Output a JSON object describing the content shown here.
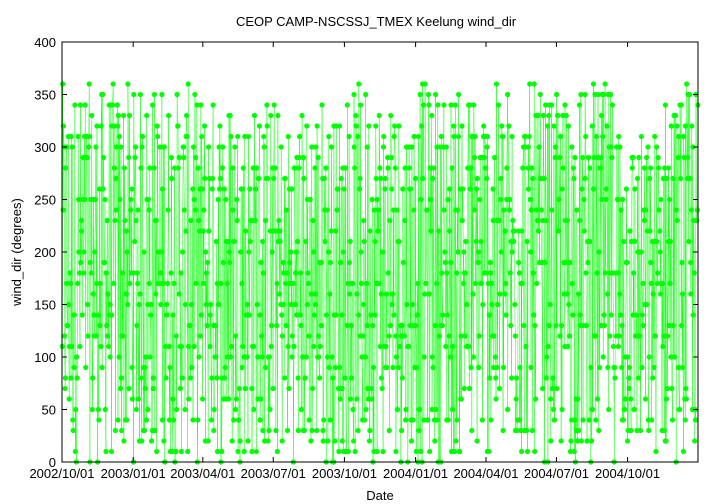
{
  "chart_data": {
    "type": "scatter",
    "title": "CEOP CAMP-NSCSSJ_TMEX Keelung  wind_dir",
    "xlabel": "Date",
    "ylabel": "wind_dir (degrees)",
    "xlim": [
      "2002-10-01",
      "2004-12-31"
    ],
    "ylim": [
      0,
      400
    ],
    "x_ticks": [
      "2002/10/01",
      "2003/01/01",
      "2003/04/01",
      "2003/07/01",
      "2003/10/01",
      "2004/01/01",
      "2004/04/01",
      "2004/07/01",
      "2004/10/01"
    ],
    "y_ticks": [
      0,
      50,
      100,
      150,
      200,
      250,
      300,
      350,
      400
    ],
    "grid": false,
    "series": [
      {
        "color": "#00ff00",
        "style": "line-with-points",
        "x": [
          "2002-10-01",
          "2002-10-15",
          "2002-11-01",
          "2002-11-15",
          "2002-12-01",
          "2002-12-15",
          "2003-01-01",
          "2003-01-15",
          "2003-02-01",
          "2003-02-15",
          "2003-03-01",
          "2003-03-15",
          "2003-04-01",
          "2003-04-15",
          "2003-05-01",
          "2003-05-15",
          "2003-06-01",
          "2003-06-15",
          "2003-07-01",
          "2003-07-15",
          "2003-08-01",
          "2003-08-15",
          "2003-09-01",
          "2003-09-15",
          "2003-10-01",
          "2003-10-15",
          "2003-11-01",
          "2003-11-15",
          "2003-12-01",
          "2003-12-15",
          "2004-01-01",
          "2004-01-15",
          "2004-02-01",
          "2004-02-15",
          "2004-03-01",
          "2004-03-15",
          "2004-04-01",
          "2004-04-15",
          "2004-05-01",
          "2004-05-15",
          "2004-06-01",
          "2004-06-15",
          "2004-07-01",
          "2004-07-15",
          "2004-08-01",
          "2004-08-15",
          "2004-09-01",
          "2004-09-15",
          "2004-10-01",
          "2004-10-15",
          "2004-11-01",
          "2004-11-15",
          "2004-12-01",
          "2004-12-15"
        ],
        "min": [
          0,
          0,
          0,
          0,
          0,
          0,
          0,
          0,
          0,
          0,
          0,
          0,
          0,
          0,
          0,
          0,
          0,
          0,
          0,
          0,
          0,
          0,
          0,
          0,
          0,
          0,
          0,
          0,
          0,
          0,
          0,
          0,
          0,
          0,
          0,
          0,
          0,
          0,
          0,
          0,
          0,
          0,
          0,
          0,
          0,
          0,
          0,
          0,
          0,
          0,
          0,
          0,
          0,
          0
        ],
        "max": [
          360,
          360,
          360,
          360,
          360,
          360,
          360,
          360,
          360,
          360,
          360,
          360,
          350,
          350,
          360,
          350,
          350,
          350,
          350,
          320,
          340,
          340,
          360,
          330,
          360,
          360,
          360,
          360,
          360,
          340,
          360,
          360,
          360,
          360,
          360,
          360,
          360,
          360,
          360,
          360,
          360,
          350,
          350,
          360,
          360,
          360,
          360,
          360,
          330,
          320,
          300,
          360,
          360,
          360
        ]
      }
    ]
  }
}
